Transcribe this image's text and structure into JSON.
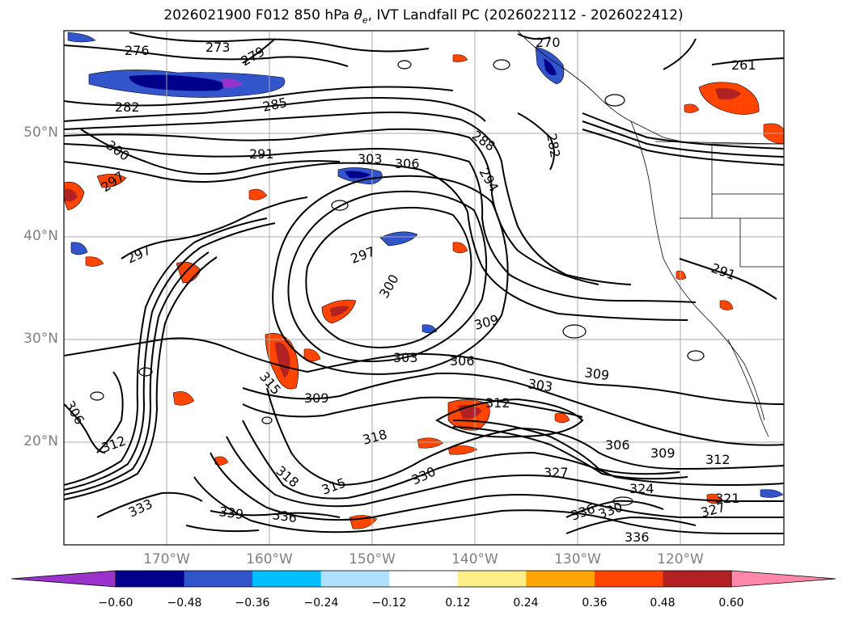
{
  "title": {
    "prefix": "2026021900 F012 850 hPa ",
    "symbol": "θ",
    "symbol_sub": "e",
    "suffix": ", IVT Landfall PC (2026022112 - 2026022412)"
  },
  "axes": {
    "lat_labels": [
      "50°N",
      "40°N",
      "30°N",
      "20°N"
    ],
    "lon_labels": [
      "170°W",
      "160°W",
      "150°W",
      "140°W",
      "130°W",
      "120°W"
    ]
  },
  "colorbar": {
    "colors": [
      "#9933cc",
      "#00008b",
      "#3355cc",
      "#00bfff",
      "#b0e0ff",
      "#ffffff",
      "#ffee88",
      "#ffa500",
      "#ff4500",
      "#b22222",
      "#ff88aa"
    ],
    "tick_labels": [
      "−0.60",
      "−0.48",
      "−0.36",
      "−0.24",
      "−0.12",
      "0.12",
      "0.24",
      "0.36",
      "0.48",
      "0.60"
    ]
  },
  "contour_labels": [
    "273",
    "276",
    "279",
    "282",
    "285",
    "291",
    "300",
    "297",
    "303",
    "306",
    "288",
    "294",
    "282",
    "270",
    "261",
    "297",
    "300",
    "297",
    "309",
    "303",
    "306",
    "309",
    "303",
    "315",
    "309",
    "312",
    "318",
    "306",
    "309",
    "312",
    "327",
    "330",
    "324",
    "336",
    "339",
    "336",
    "333",
    "312",
    "306",
    "318",
    "315",
    "321",
    "327",
    "336",
    "330",
    "291"
  ]
}
